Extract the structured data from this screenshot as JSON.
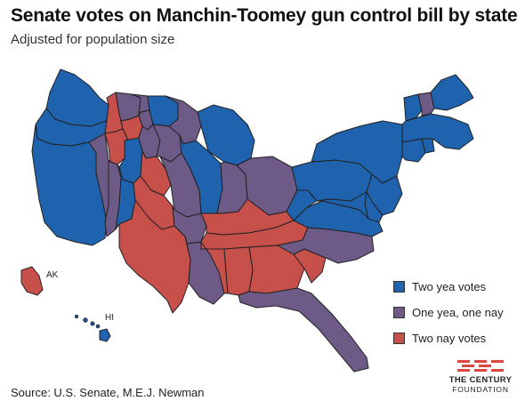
{
  "title": "Senate votes on Manchin-Toomey gun control bill by state",
  "subtitle": "Adjusted for population size",
  "source": "Source: U.S. Senate, M.E.J. Newman",
  "colors": {
    "two_yea": "#1f62ad",
    "split": "#6e5a86",
    "two_nay": "#c7504b"
  },
  "legend": [
    {
      "key": "two_yea",
      "label": "Two yea votes"
    },
    {
      "key": "split",
      "label": "One yea, one nay"
    },
    {
      "key": "two_nay",
      "label": "Two nay votes"
    }
  ],
  "map_labels": {
    "ak": "AK",
    "hi": "HI"
  },
  "logo": {
    "line1": "THE CENTURY",
    "line2": "FOUNDATION",
    "icon": "century-foundation-logo-icon"
  },
  "states": [
    {
      "code": "WA",
      "vote": "two_yea"
    },
    {
      "code": "OR",
      "vote": "two_yea"
    },
    {
      "code": "CA",
      "vote": "two_yea"
    },
    {
      "code": "NV",
      "vote": "split"
    },
    {
      "code": "ID",
      "vote": "two_nay"
    },
    {
      "code": "MT",
      "vote": "split"
    },
    {
      "code": "WY",
      "vote": "two_nay"
    },
    {
      "code": "UT",
      "vote": "two_nay"
    },
    {
      "code": "AZ",
      "vote": "split"
    },
    {
      "code": "CO",
      "vote": "two_yea"
    },
    {
      "code": "NM",
      "vote": "two_yea"
    },
    {
      "code": "ND",
      "vote": "split"
    },
    {
      "code": "SD",
      "vote": "split"
    },
    {
      "code": "NE",
      "vote": "split"
    },
    {
      "code": "KS",
      "vote": "two_nay"
    },
    {
      "code": "OK",
      "vote": "two_nay"
    },
    {
      "code": "TX",
      "vote": "two_nay"
    },
    {
      "code": "MN",
      "vote": "two_yea"
    },
    {
      "code": "IA",
      "vote": "split"
    },
    {
      "code": "MO",
      "vote": "split"
    },
    {
      "code": "AR",
      "vote": "split"
    },
    {
      "code": "LA",
      "vote": "split"
    },
    {
      "code": "WI",
      "vote": "split"
    },
    {
      "code": "IL",
      "vote": "two_yea"
    },
    {
      "code": "MI",
      "vote": "two_yea"
    },
    {
      "code": "IN",
      "vote": "split"
    },
    {
      "code": "OH",
      "vote": "split"
    },
    {
      "code": "KY",
      "vote": "two_nay"
    },
    {
      "code": "TN",
      "vote": "two_nay"
    },
    {
      "code": "MS",
      "vote": "two_nay"
    },
    {
      "code": "AL",
      "vote": "two_nay"
    },
    {
      "code": "GA",
      "vote": "two_nay"
    },
    {
      "code": "FL",
      "vote": "split"
    },
    {
      "code": "SC",
      "vote": "two_nay"
    },
    {
      "code": "NC",
      "vote": "split"
    },
    {
      "code": "VA",
      "vote": "two_yea"
    },
    {
      "code": "WV",
      "vote": "two_yea"
    },
    {
      "code": "PA",
      "vote": "two_yea"
    },
    {
      "code": "NY",
      "vote": "two_yea"
    },
    {
      "code": "NJ",
      "vote": "two_yea"
    },
    {
      "code": "DE",
      "vote": "two_yea"
    },
    {
      "code": "MD",
      "vote": "two_yea"
    },
    {
      "code": "CT",
      "vote": "two_yea"
    },
    {
      "code": "RI",
      "vote": "two_yea"
    },
    {
      "code": "MA",
      "vote": "two_yea"
    },
    {
      "code": "VT",
      "vote": "two_yea"
    },
    {
      "code": "NH",
      "vote": "split"
    },
    {
      "code": "ME",
      "vote": "two_yea"
    },
    {
      "code": "AK",
      "vote": "two_nay"
    },
    {
      "code": "HI",
      "vote": "two_yea"
    }
  ]
}
